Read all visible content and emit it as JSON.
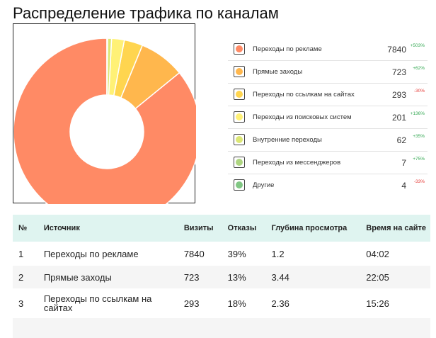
{
  "page": {
    "title": "Распределение трафика по каналам"
  },
  "chart_data": {
    "type": "pie",
    "donut": true,
    "categories": [
      "Переходы по рекламе",
      "Прямые заходы",
      "Переходы по ссылкам на сайтах",
      "Переходы из поисковых систем",
      "Внутренние переходы",
      "Переходы из мессенджеров",
      "Другие"
    ],
    "values": [
      7840,
      723,
      293,
      201,
      62,
      7,
      4
    ],
    "colors": [
      "#ff8a65",
      "#ffb74d",
      "#ffd54f",
      "#fff176",
      "#dce775",
      "#aed581",
      "#81c784"
    ]
  },
  "legend": {
    "items": [
      {
        "label": "Переходы по рекламе",
        "value": "7840",
        "delta": "+503%",
        "trend": "up",
        "color": "#ff8a65"
      },
      {
        "label": "Прямые заходы",
        "value": "723",
        "delta": "+62%",
        "trend": "up",
        "color": "#ffb74d"
      },
      {
        "label": "Переходы по ссылкам на сайтах",
        "value": "293",
        "delta": "-30%",
        "trend": "down",
        "color": "#ffd54f"
      },
      {
        "label": "Переходы из поисковых систем",
        "value": "201",
        "delta": "+136%",
        "trend": "up",
        "color": "#fff176"
      },
      {
        "label": "Внутренние переходы",
        "value": "62",
        "delta": "+35%",
        "trend": "up",
        "color": "#dce775"
      },
      {
        "label": "Переходы из мессенджеров",
        "value": "7",
        "delta": "+75%",
        "trend": "up",
        "color": "#aed581"
      },
      {
        "label": "Другие",
        "value": "4",
        "delta": "-33%",
        "trend": "down",
        "color": "#81c784"
      }
    ]
  },
  "table": {
    "headers": {
      "num": "№",
      "source": "Источник",
      "visits": "Визиты",
      "bounces": "Отказы",
      "depth": "Глубина просмотра",
      "time": "Время на сайте"
    },
    "rows": [
      {
        "num": "1",
        "source": "Переходы по рекламе",
        "visits": "7840",
        "bounces": "39%",
        "depth": "1.2",
        "time": "04:02"
      },
      {
        "num": "2",
        "source": "Прямые заходы",
        "visits": "723",
        "bounces": "13%",
        "depth": "3.44",
        "time": "22:05"
      },
      {
        "num": "3",
        "source": "Переходы по ссылкам на сайтах",
        "visits": "293",
        "bounces": "18%",
        "depth": "2.36",
        "time": "15:26"
      },
      {
        "num": "",
        "source": "",
        "visits": "",
        "bounces": "",
        "depth": "",
        "time": ""
      }
    ]
  }
}
